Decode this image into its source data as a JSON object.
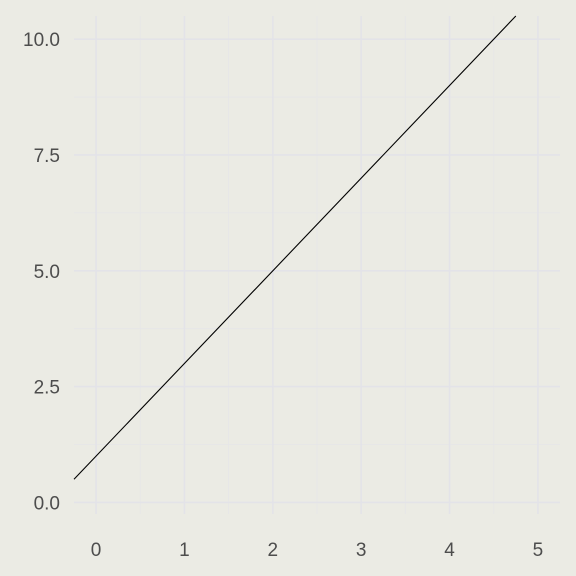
{
  "chart_data": {
    "type": "line",
    "title": "",
    "xlabel": "",
    "ylabel": "",
    "xlim": [
      -0.25,
      5.25
    ],
    "ylim": [
      -0.25,
      10.5
    ],
    "grid": true,
    "background": "#ebebe4",
    "grid_color": "#e3e3e8",
    "line_color": "#000000",
    "x_ticks": [
      0,
      1,
      2,
      3,
      4,
      5
    ],
    "x_tick_labels": [
      "0",
      "1",
      "2",
      "3",
      "4",
      "5"
    ],
    "y_ticks": [
      0,
      2.5,
      5,
      7.5,
      10
    ],
    "y_tick_labels": [
      "0.0",
      "2.5",
      "5.0",
      "7.5",
      "10.0"
    ],
    "series": [
      {
        "x": [
          -0.25,
          4.75
        ],
        "y": [
          0.5,
          10.5
        ]
      }
    ]
  }
}
